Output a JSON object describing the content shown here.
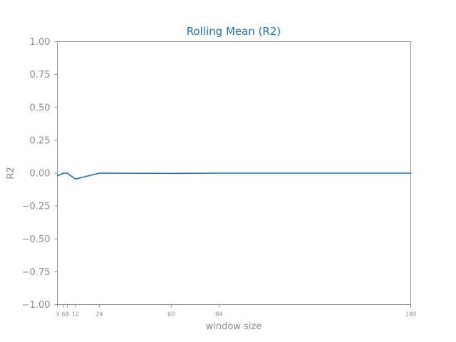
{
  "chart_data": {
    "type": "line",
    "title": "Rolling Mean (R2)",
    "xlabel": "window size",
    "ylabel": "R2",
    "x": [
      3,
      6,
      8,
      12,
      24,
      60,
      84,
      180
    ],
    "x_tick_labels": [
      "3",
      "6",
      "8",
      "12",
      "24",
      "60",
      "84",
      "180"
    ],
    "xlim": [
      3,
      180
    ],
    "ylim": [
      -1.0,
      1.0
    ],
    "y_ticks": [
      1.0,
      0.75,
      0.5,
      0.25,
      0.0,
      -0.25,
      -0.5,
      -0.75,
      -1.0
    ],
    "y_tick_labels": [
      "1.00",
      "0.75",
      "0.50",
      "0.25",
      "0.00",
      "−0.25",
      "−0.50",
      "−0.75",
      "−1.00"
    ],
    "grid": false,
    "series": [
      {
        "color": "#1f6fb2",
        "values": [
          -0.02,
          0.0,
          0.0,
          -0.045,
          0.0,
          -0.002,
          0.0,
          0.0
        ]
      }
    ]
  },
  "colors": {
    "axis": "#8c8c8c",
    "title": "#1f6fb2",
    "line": "#1f6fb2"
  }
}
